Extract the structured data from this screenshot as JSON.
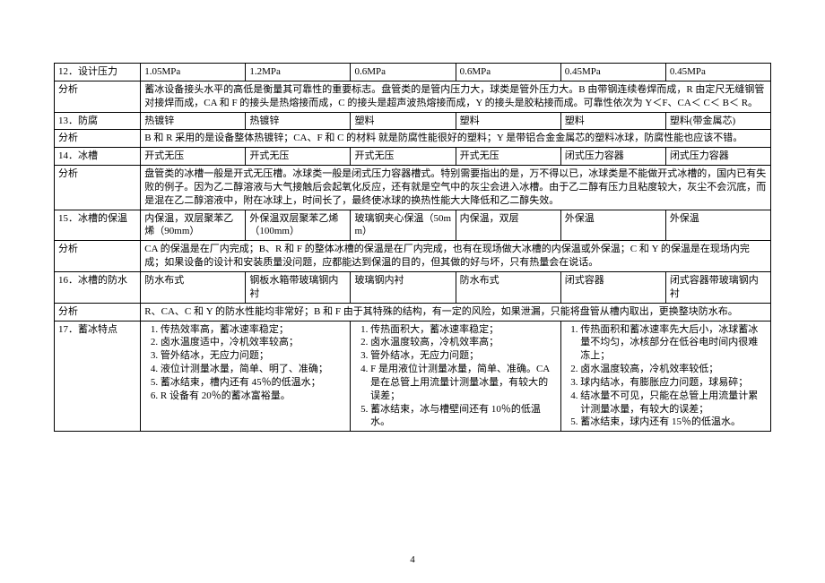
{
  "page_number": "4",
  "table": {
    "rows": [
      {
        "type": "row7",
        "cells": [
          "12．设计压力",
          "1.05MPa",
          "1.2MPa",
          "0.6MPa",
          "0.6MPa",
          "0.45MPa",
          "0.45MPa"
        ]
      },
      {
        "type": "merge",
        "label": "分析",
        "text": "蓄冰设备接头水平的高低是衡量其可靠性的重要标志。盘管类的是管内压力大，球类是管外压力大。B 由带钢连续卷焊而成，R 由定尺无缝钢管对接焊而成，CA 和 F 的接头是热熔接而成，C 的接头是超声波热熔接而成，Y 的接头是胶粘接而成。可靠性依次为 Y＜F、CA＜ C＜ B＜ R。"
      },
      {
        "type": "row7",
        "cells": [
          "13．防腐",
          "热镀锌",
          "热镀锌",
          "塑料",
          "塑料",
          "塑料",
          "塑料(带金属芯)"
        ]
      },
      {
        "type": "merge",
        "label": "分析",
        "text": "B 和 R 采用的是设备整体热镀锌；CA、F 和 C 的材料 就是防腐性能很好的塑料；Y 是带铝合金金属芯的塑料冰球，防腐性能也应该不错。"
      },
      {
        "type": "row7",
        "cells": [
          "14．冰槽",
          "开式无压",
          "开式无压",
          "开式无压",
          "开式无压",
          "闭式压力容器",
          "闭式压力容器"
        ]
      },
      {
        "type": "merge",
        "label": "分析",
        "text": "盘管类的冰槽一般是开式无压槽。冰球类一般是闭式压力容器槽式。特别需要指出的是，万不得以已，冰球类是不能做开式冰槽的，国内已有失败的例子。因为乙二醇溶液与大气接触后会起氧化反应，还有就是空气中的灰尘会进入冰槽。由于乙二醇有压力且粘度较大，灰尘不会沉底，而是混在乙二醇溶液中，附在冰球上，时间长了，最终使冰球的换热性能大大降低和乙二醇失效。"
      },
      {
        "type": "row7",
        "cells": [
          "15．冰槽的保温",
          "内保温，双层聚苯乙烯（90mm）",
          "外保温双层聚苯乙烯（100mm）",
          "玻璃钢夹心保温（50mm）",
          "内保温，双层",
          "外保温",
          "外保温"
        ]
      },
      {
        "type": "merge",
        "label": "分析",
        "text": "CA 的保温是在厂内完成；B、R 和 F 的整体冰槽的保温是在厂内完成，也有在现场做大冰槽的内保温或外保温；C 和 Y 的保温是在现场内完成；如果设备的设计和安装质量没问题，应都能达到保温的目的，但其做的好与坏，只有热量会在说话。"
      },
      {
        "type": "row7",
        "cells": [
          "16．冰槽的防水",
          "防水布式",
          "钢板水箱带玻璃钢内衬",
          "玻璃钢内衬",
          "防水布式",
          "闭式容器",
          "闭式容器带玻璃钢内衬"
        ]
      },
      {
        "type": "merge",
        "label": "分析",
        "text": "R、CA、C 和 Y 的防水性能均非常好；B 和 F 由于其特殊的结构，有一定的风险，如果泄漏，只能将盘管从槽内取出，更换整块防水布。"
      },
      {
        "type": "feat",
        "label": "17．蓄冰特点",
        "colA": [
          "传热效率高，蓄冰速率稳定；",
          "卤水温度适中，冷机效率较高；",
          "管外结冰，无应力问题；",
          "液位计测量冰量，简单、明了、准确；",
          "蓄冰结束，槽内还有 45％的低温水；",
          "R 设备有 20％的蓄冰富裕量。"
        ],
        "colB": [
          "传热面积大，蓄冰速率稳定；",
          "卤水温度较高，冷机效率高；",
          "管外结冰，无应力问题；",
          "F 是用液位计测量冰量，简单、准确。CA 是在总管上用流量计测量冰量，有较大的误差；",
          "蓄冰结束，冰与槽壁间还有 10％的低温水。"
        ],
        "colC": [
          "传热面积和蓄冰速率先大后小，冰球蓄冰量不均匀，冰核部分在低谷电时间内很难冻上；",
          "卤水温度较高，冷机效率较低；",
          "球内结冰，有膨胀应力问题，球易碎；",
          "结冰量不可见，只能在总管上用流量计累计测量冰量，有较大的误差；",
          "蓄冰结束，球内还有 15％的低温水。"
        ]
      }
    ]
  }
}
